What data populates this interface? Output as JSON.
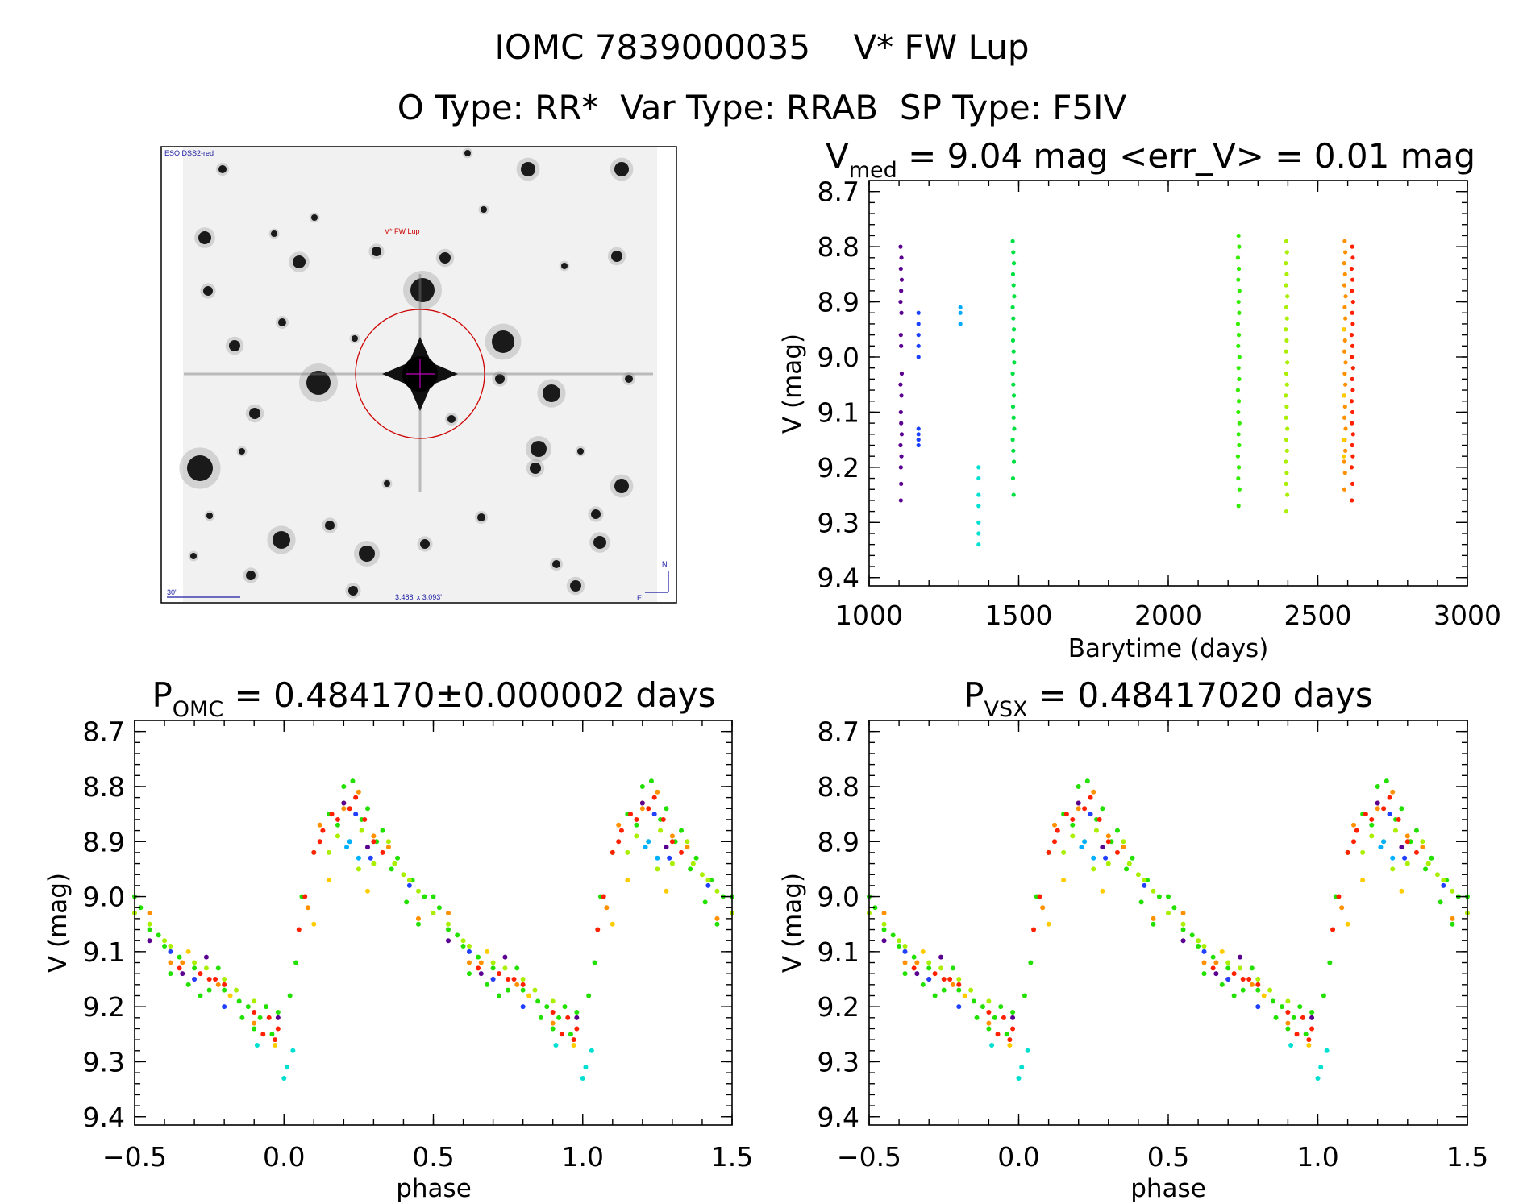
{
  "header": {
    "title_line1": "IOMC 7839000035    V* FW Lup",
    "title_line2": "O Type: RR*  Var Type: RRAB  SP Type: F5IV"
  },
  "thumbnail": {
    "survey_label": "ESO DSS2-red",
    "target_label": "V* FW Lup",
    "scale_label": "30\"",
    "field_label": "3.488' x 3.093'",
    "north_label": "N",
    "east_label": "E",
    "marker_color": "#cc0000",
    "label_color": "#1a1aa0"
  },
  "chart_data": [
    {
      "type": "scatter",
      "title_main": "V",
      "title_sub": "med",
      "title_rest": " = 9.04 mag <err_V> = 0.01 mag",
      "xlabel": "Barytime (days)",
      "ylabel": "V (mag)",
      "xlim": [
        1000,
        3000
      ],
      "ylim": [
        8.68,
        9.415
      ],
      "y_inverted": true,
      "xticks": [
        "1000",
        "1500",
        "2000",
        "2500",
        "3000"
      ],
      "yticks": [
        "8.7",
        "8.8",
        "8.9",
        "9.0",
        "9.1",
        "9.2",
        "9.3",
        "9.4"
      ],
      "series": [
        {
          "color": "#5a0090",
          "x": [
            1105,
            1108,
            1106,
            1109,
            1107,
            1105,
            1108,
            1106,
            1107,
            1109,
            1105,
            1108,
            1106,
            1107,
            1109,
            1105,
            1108,
            1106,
            1107,
            1106
          ],
          "y": [
            8.8,
            8.82,
            8.84,
            8.86,
            8.88,
            8.9,
            8.92,
            8.96,
            8.98,
            9.03,
            9.05,
            9.07,
            9.1,
            9.12,
            9.14,
            9.16,
            9.18,
            9.2,
            9.23,
            9.26
          ]
        },
        {
          "color": "#1a40ff",
          "x": [
            1165,
            1165,
            1165,
            1165,
            1165,
            1165,
            1165,
            1165,
            1165
          ],
          "y": [
            8.92,
            8.94,
            8.96,
            8.98,
            9.0,
            9.13,
            9.14,
            9.15,
            9.16
          ]
        },
        {
          "color": "#00aaff",
          "x": [
            1305,
            1305,
            1305
          ],
          "y": [
            8.91,
            8.92,
            8.94
          ]
        },
        {
          "color": "#00e0d0",
          "x": [
            1366,
            1366,
            1366,
            1366,
            1366,
            1366,
            1366
          ],
          "y": [
            9.2,
            9.22,
            9.25,
            9.27,
            9.3,
            9.32,
            9.34
          ]
        },
        {
          "color": "#00e040",
          "x": [
            1480,
            1482,
            1484,
            1481,
            1483,
            1485,
            1480,
            1482,
            1484,
            1481,
            1483,
            1485,
            1480,
            1482,
            1484,
            1481,
            1483,
            1485,
            1480,
            1482,
            1484,
            1481,
            1483
          ],
          "y": [
            8.79,
            8.81,
            8.83,
            8.85,
            8.87,
            8.89,
            8.91,
            8.93,
            8.95,
            8.97,
            8.99,
            9.01,
            9.03,
            9.05,
            9.07,
            9.09,
            9.11,
            9.13,
            9.15,
            9.17,
            9.19,
            9.22,
            9.25
          ]
        },
        {
          "color": "#33ee00",
          "x": [
            2235,
            2237,
            2233,
            2236,
            2234,
            2238,
            2235,
            2237,
            2233,
            2236,
            2234,
            2238,
            2235,
            2237,
            2233,
            2236,
            2234,
            2238,
            2235,
            2237,
            2233,
            2236,
            2234,
            2238,
            2235
          ],
          "y": [
            8.78,
            8.8,
            8.82,
            8.84,
            8.86,
            8.88,
            8.9,
            8.92,
            8.94,
            8.96,
            8.98,
            9.0,
            9.02,
            9.04,
            9.06,
            9.08,
            9.1,
            9.12,
            9.14,
            9.16,
            9.18,
            9.2,
            9.22,
            9.24,
            9.27
          ]
        },
        {
          "color": "#aaee00",
          "x": [
            2395,
            2397,
            2393,
            2396,
            2394,
            2398,
            2395,
            2397,
            2393,
            2396,
            2394,
            2398,
            2395,
            2397,
            2393,
            2396,
            2394,
            2398,
            2395,
            2397,
            2393,
            2396,
            2394,
            2398,
            2395
          ],
          "y": [
            8.79,
            8.81,
            8.83,
            8.85,
            8.87,
            8.89,
            8.91,
            8.93,
            8.95,
            8.97,
            8.99,
            9.01,
            9.03,
            9.05,
            9.07,
            9.09,
            9.11,
            9.13,
            9.15,
            9.17,
            9.19,
            9.21,
            9.23,
            9.25,
            9.28
          ]
        },
        {
          "color": "#ff9000",
          "x": [
            2590,
            2592,
            2588,
            2591,
            2589,
            2593,
            2590,
            2592,
            2588,
            2591,
            2589,
            2593,
            2590,
            2592,
            2588,
            2591,
            2589,
            2593,
            2590,
            2592,
            2588,
            2591,
            2589
          ],
          "y": [
            8.79,
            8.81,
            8.83,
            8.85,
            8.87,
            8.89,
            8.91,
            8.93,
            8.95,
            8.97,
            8.99,
            9.01,
            9.03,
            9.05,
            9.07,
            9.09,
            9.11,
            9.13,
            9.15,
            9.17,
            9.19,
            9.21,
            9.24
          ]
        },
        {
          "color": "#ffcc00",
          "x": [
            2586,
            2587,
            2586,
            2587
          ],
          "y": [
            8.95,
            9.07,
            9.15,
            9.18
          ]
        },
        {
          "color": "#ff2000",
          "x": [
            2615,
            2617,
            2613,
            2616,
            2614,
            2618,
            2615,
            2617,
            2613,
            2616,
            2614,
            2618,
            2615,
            2617,
            2613,
            2616,
            2614,
            2618,
            2615,
            2617,
            2613,
            2616,
            2614
          ],
          "y": [
            8.8,
            8.82,
            8.84,
            8.86,
            8.88,
            8.9,
            8.92,
            8.94,
            8.96,
            8.98,
            9.0,
            9.02,
            9.04,
            9.06,
            9.08,
            9.1,
            9.12,
            9.14,
            9.16,
            9.18,
            9.2,
            9.23,
            9.26
          ]
        }
      ]
    },
    {
      "type": "scatter",
      "title_main": "P",
      "title_sub": "OMC",
      "title_rest": " = 0.484170±0.000002 days",
      "xlabel": "phase",
      "ylabel": "V (mag)",
      "xlim": [
        -0.5,
        1.5
      ],
      "ylim": [
        8.68,
        9.415
      ],
      "y_inverted": true,
      "xticks": [
        "−0.5",
        "0.0",
        "0.5",
        "1.0",
        "1.5"
      ],
      "yticks": [
        "8.7",
        "8.8",
        "8.9",
        "9.0",
        "9.1",
        "9.2",
        "9.3",
        "9.4"
      ],
      "series": [
        {
          "color": "#22e000",
          "phase": [
            0.52,
            0.6,
            0.7,
            0.8,
            0.88,
            0.92,
            0.96,
            0.02,
            0.06,
            0.1,
            0.15,
            0.2,
            0.23,
            0.28,
            0.33,
            0.38,
            0.43,
            0.47,
            0.55,
            0.65,
            0.75,
            0.85,
            0.9,
            0.98,
            0.62,
            0.72,
            0.45,
            0.5,
            0.58,
            0.68,
            0.78,
            0.86,
            0.94,
            0.04,
            0.18,
            0.26,
            0.31,
            0.36,
            0.41
          ],
          "y": [
            9.02,
            9.09,
            9.13,
            9.17,
            9.2,
            9.22,
            9.25,
            9.18,
            9.0,
            8.92,
            8.85,
            8.8,
            8.79,
            8.84,
            8.88,
            8.93,
            8.97,
            9.0,
            9.06,
            9.11,
            9.17,
            9.19,
            9.24,
            9.21,
            9.14,
            9.18,
            9.05,
            9.0,
            9.07,
            9.16,
            9.13,
            9.22,
            9.2,
            9.12,
            8.87,
            8.86,
            8.9,
            8.95,
            9.01
          ]
        },
        {
          "color": "#ff2000",
          "phase": [
            0.98,
            0.95,
            0.9,
            0.75,
            0.72,
            0.05,
            0.07,
            0.1,
            0.13,
            0.16,
            0.2,
            0.24,
            0.27,
            0.3,
            0.33,
            0.65,
            0.77,
            0.93,
            0.22,
            0.18,
            0.12,
            0.7,
            0.8,
            0.97
          ],
          "y": [
            9.24,
            9.22,
            9.21,
            9.15,
            9.14,
            9.06,
            9.0,
            8.92,
            8.88,
            8.85,
            8.83,
            8.82,
            8.86,
            8.9,
            8.92,
            9.13,
            9.15,
            9.25,
            8.84,
            8.86,
            8.9,
            9.15,
            9.16,
            9.26
          ]
        },
        {
          "color": "#aaee00",
          "phase": [
            0.15,
            0.18,
            0.22,
            0.26,
            0.3,
            0.35,
            0.4,
            0.45,
            0.5,
            0.6,
            0.7,
            0.8,
            0.9,
            0.55,
            0.25,
            0.62,
            0.74,
            0.84,
            0.42,
            0.37
          ],
          "y": [
            8.92,
            8.89,
            8.9,
            8.88,
            8.94,
            8.9,
            8.96,
            8.99,
            9.03,
            9.08,
            9.12,
            9.15,
            9.19,
            9.05,
            8.95,
            9.09,
            9.13,
            9.17,
            8.97,
            8.94
          ]
        },
        {
          "color": "#ff9000",
          "phase": [
            0.12,
            0.2,
            0.25,
            0.35,
            0.45,
            0.55,
            0.66,
            0.78,
            0.9,
            0.08,
            0.3,
            0.62
          ],
          "y": [
            8.87,
            8.84,
            8.81,
            8.91,
            9.04,
            9.03,
            9.12,
            9.16,
            9.23,
            9.02,
            8.89,
            9.12
          ]
        },
        {
          "color": "#ffcc00",
          "phase": [
            0.15,
            0.1,
            0.28,
            0.68,
            0.82,
            0.97
          ],
          "y": [
            8.97,
            9.05,
            8.99,
            9.1,
            9.18,
            9.27
          ]
        },
        {
          "color": "#5a0090",
          "phase": [
            0.2,
            0.28,
            0.55,
            0.74,
            0.66,
            0.98
          ],
          "y": [
            8.83,
            8.91,
            9.08,
            9.11,
            9.14,
            9.22
          ]
        },
        {
          "color": "#2040ff",
          "phase": [
            0.24,
            0.29,
            0.42,
            0.62,
            0.7,
            0.8
          ],
          "y": [
            8.85,
            8.93,
            8.98,
            9.1,
            9.15,
            9.2
          ]
        },
        {
          "color": "#00b0ff",
          "phase": [
            0.21,
            0.22,
            0.25
          ],
          "y": [
            8.91,
            8.9,
            8.93
          ]
        },
        {
          "color": "#00e0d0",
          "phase": [
            0.91,
            0.0,
            0.01,
            0.03
          ],
          "y": [
            9.27,
            9.33,
            9.31,
            9.28
          ]
        }
      ]
    },
    {
      "type": "scatter",
      "title_main": "P",
      "title_sub": "VSX",
      "title_rest": " = 0.48417020 days",
      "xlabel": "phase",
      "ylabel": "V (mag)",
      "xlim": [
        -0.5,
        1.5
      ],
      "ylim": [
        8.68,
        9.415
      ],
      "y_inverted": true,
      "xticks": [
        "−0.5",
        "0.0",
        "0.5",
        "1.0",
        "1.5"
      ],
      "yticks": [
        "8.7",
        "8.8",
        "8.9",
        "9.0",
        "9.1",
        "9.2",
        "9.3",
        "9.4"
      ],
      "series": [
        {
          "color": "#22e000",
          "phase": [
            0.52,
            0.6,
            0.7,
            0.8,
            0.88,
            0.92,
            0.96,
            0.02,
            0.06,
            0.1,
            0.15,
            0.2,
            0.23,
            0.28,
            0.33,
            0.38,
            0.43,
            0.47,
            0.55,
            0.65,
            0.75,
            0.85,
            0.9,
            0.98,
            0.62,
            0.72,
            0.45,
            0.5,
            0.58,
            0.68,
            0.78,
            0.86,
            0.94,
            0.04,
            0.18,
            0.26,
            0.31,
            0.36,
            0.41
          ],
          "y": [
            9.02,
            9.09,
            9.13,
            9.17,
            9.2,
            9.22,
            9.25,
            9.18,
            9.0,
            8.92,
            8.85,
            8.8,
            8.79,
            8.84,
            8.88,
            8.93,
            8.97,
            9.0,
            9.06,
            9.11,
            9.17,
            9.19,
            9.24,
            9.21,
            9.14,
            9.18,
            9.05,
            9.0,
            9.07,
            9.16,
            9.13,
            9.22,
            9.2,
            9.12,
            8.87,
            8.86,
            8.9,
            8.95,
            9.01
          ]
        },
        {
          "color": "#ff2000",
          "phase": [
            0.98,
            0.95,
            0.9,
            0.75,
            0.72,
            0.05,
            0.07,
            0.1,
            0.13,
            0.16,
            0.2,
            0.24,
            0.27,
            0.3,
            0.33,
            0.65,
            0.77,
            0.93,
            0.22,
            0.18,
            0.12,
            0.7,
            0.8,
            0.97
          ],
          "y": [
            9.24,
            9.22,
            9.21,
            9.15,
            9.14,
            9.06,
            9.0,
            8.92,
            8.88,
            8.85,
            8.83,
            8.82,
            8.86,
            8.9,
            8.92,
            9.13,
            9.15,
            9.25,
            8.84,
            8.86,
            8.9,
            9.15,
            9.16,
            9.26
          ]
        },
        {
          "color": "#aaee00",
          "phase": [
            0.15,
            0.18,
            0.22,
            0.26,
            0.3,
            0.35,
            0.4,
            0.45,
            0.5,
            0.6,
            0.7,
            0.8,
            0.9,
            0.55,
            0.25,
            0.62,
            0.74,
            0.84,
            0.42,
            0.37
          ],
          "y": [
            8.92,
            8.89,
            8.9,
            8.88,
            8.94,
            8.9,
            8.96,
            8.99,
            9.03,
            9.08,
            9.12,
            9.15,
            9.19,
            9.05,
            8.95,
            9.09,
            9.13,
            9.17,
            8.97,
            8.94
          ]
        },
        {
          "color": "#ff9000",
          "phase": [
            0.12,
            0.2,
            0.25,
            0.35,
            0.45,
            0.55,
            0.66,
            0.78,
            0.9,
            0.08,
            0.3,
            0.62
          ],
          "y": [
            8.87,
            8.84,
            8.81,
            8.91,
            9.04,
            9.03,
            9.12,
            9.16,
            9.23,
            9.02,
            8.89,
            9.12
          ]
        },
        {
          "color": "#ffcc00",
          "phase": [
            0.15,
            0.1,
            0.28,
            0.68,
            0.82,
            0.97
          ],
          "y": [
            8.97,
            9.05,
            8.99,
            9.1,
            9.18,
            9.27
          ]
        },
        {
          "color": "#5a0090",
          "phase": [
            0.2,
            0.28,
            0.55,
            0.74,
            0.66,
            0.98
          ],
          "y": [
            8.83,
            8.91,
            9.08,
            9.11,
            9.14,
            9.22
          ]
        },
        {
          "color": "#2040ff",
          "phase": [
            0.24,
            0.29,
            0.42,
            0.62,
            0.7,
            0.8
          ],
          "y": [
            8.85,
            8.93,
            8.98,
            9.1,
            9.15,
            9.2
          ]
        },
        {
          "color": "#00b0ff",
          "phase": [
            0.21,
            0.22,
            0.25
          ],
          "y": [
            8.91,
            8.9,
            8.93
          ]
        },
        {
          "color": "#00e0d0",
          "phase": [
            0.91,
            0.0,
            0.01,
            0.03
          ],
          "y": [
            9.27,
            9.33,
            9.31,
            9.28
          ]
        }
      ]
    }
  ]
}
